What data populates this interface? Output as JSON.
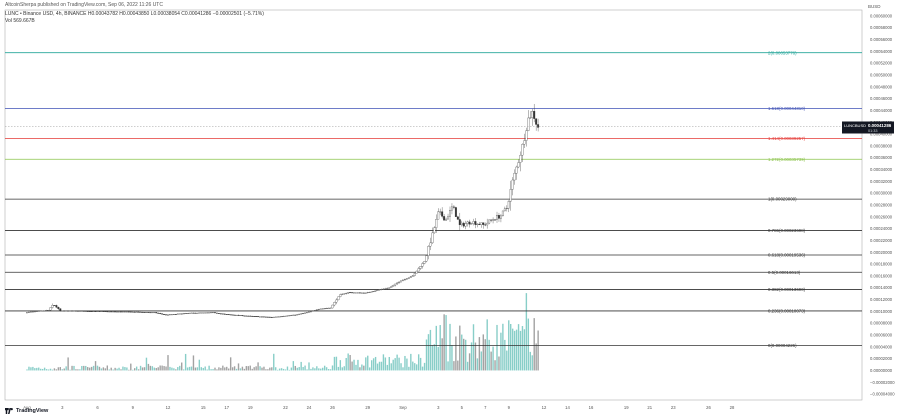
{
  "header": {
    "publisher": "AltcoinSherpa published on TradingView.com, Sep 06, 2022 11:26 UTC",
    "legend": "LUNC • Binance USD, 4h, BINANCE   H0.00043782  H0.00043850  L0.00038054  C0.00041286  −0.00002501 (−5.71%)",
    "volume": "Vol   569.667B",
    "currency": "BUSD",
    "watermark": "TradingView"
  },
  "colors": {
    "up": "#26a69a",
    "down": "#555555",
    "fib_0": "#333333",
    "fib_1618": "#3f51b5",
    "fib_1414": "#e53935",
    "fib_1272": "#8bc34a",
    "fib_2": "#26a69a",
    "price_tag_bg": "#131722"
  },
  "chart_data": {
    "type": "candlestick",
    "title": "",
    "ylim": [
      -5e-05,
      0.00061
    ],
    "y_ticks": [
      "0.00060000",
      "0.00058000",
      "0.00056000",
      "0.00054000",
      "0.00052000",
      "0.00050000",
      "0.00048000",
      "0.00046000",
      "0.00044000",
      "0.00042000",
      "0.00040000",
      "0.00038000",
      "0.00036000",
      "0.00034000",
      "0.00032000",
      "0.00030000",
      "0.00028000",
      "0.00026000",
      "0.00024000",
      "0.00022000",
      "0.00020000",
      "0.00018000",
      "0.00016000",
      "0.00014000",
      "0.00012000",
      "0.00010000",
      "0.00008000",
      "0.00006000",
      "0.00004000",
      "0.00002000",
      "0.00000000",
      "−0.00002000",
      "−0.00004000"
    ],
    "y_tick_values": [
      0.0006,
      0.00058,
      0.00056,
      0.00054,
      0.00052,
      0.0005,
      0.00048,
      0.00046,
      0.00044,
      0.00042,
      0.0004,
      0.00038,
      0.00036,
      0.00034,
      0.00032,
      0.0003,
      0.00028,
      0.00026,
      0.00024,
      0.00022,
      0.0002,
      0.00018,
      0.00016,
      0.00014,
      0.00012,
      0.0001,
      8e-05,
      6e-05,
      4e-05,
      2e-05,
      0,
      -2e-05,
      -4e-05
    ],
    "x_ticks": [
      "Aug",
      "3",
      "6",
      "9",
      "12",
      "15",
      "17",
      "19",
      "22",
      "24",
      "26",
      "29",
      "Sep",
      "3",
      "5",
      "7",
      "9",
      "12",
      "14",
      "16",
      "19",
      "21",
      "23",
      "26",
      "28"
    ],
    "x_tick_days": [
      0,
      3,
      6,
      9,
      12,
      15,
      17,
      19,
      22,
      24,
      26,
      29,
      32,
      35,
      37,
      39,
      41,
      44,
      46,
      48,
      51,
      53,
      55,
      58,
      60
    ],
    "last_price": {
      "label": "LUNCBUSD",
      "value": "0.00041286",
      "countdown": "01:33",
      "y": 0.00041286
    },
    "fib_levels": [
      {
        "label": "2(0.00053776)",
        "value": 0.00053776,
        "color_key": "fib_2"
      },
      {
        "label": "1.618(0.00044310)",
        "value": 0.0004431,
        "color_key": "fib_1618"
      },
      {
        "label": "1.414(0.00039257)",
        "value": 0.00039257,
        "color_key": "fib_1414"
      },
      {
        "label": "1.272(0.00035739)",
        "value": 0.00035739,
        "color_key": "fib_1272"
      },
      {
        "label": "1(0.00029000)",
        "value": 0.00029,
        "color_key": "fib_0"
      },
      {
        "label": "0.786(0.00023698)",
        "value": 0.00023698,
        "color_key": "fib_0"
      },
      {
        "label": "0.618(0.00019536)",
        "value": 0.00019536,
        "color_key": "fib_0"
      },
      {
        "label": "0.5(0.00016613)",
        "value": 0.00016613,
        "color_key": "fib_0"
      },
      {
        "label": "0.382(0.00013690)",
        "value": 0.0001369,
        "color_key": "fib_0"
      },
      {
        "label": "0.236(0.00010073)",
        "value": 0.00010073,
        "color_key": "fib_0"
      },
      {
        "label": "0(0.00004226)",
        "value": 4.226e-05,
        "color_key": "fib_0"
      }
    ],
    "price_path": [
      [
        0,
        9.8e-05
      ],
      [
        2,
        0.000102
      ],
      [
        2.4,
        0.000112
      ],
      [
        3,
        0.000101
      ],
      [
        6,
        0.0001
      ],
      [
        9,
        9.9e-05
      ],
      [
        11,
        9.8e-05
      ],
      [
        12,
        9.4e-05
      ],
      [
        14,
        9.7e-05
      ],
      [
        16,
        9.8e-05
      ],
      [
        17,
        9.5e-05
      ],
      [
        19,
        9.2e-05
      ],
      [
        21,
        9e-05
      ],
      [
        23,
        9.4e-05
      ],
      [
        24,
        9.8e-05
      ],
      [
        25,
        0.000104
      ],
      [
        26,
        0.000106
      ],
      [
        26.8,
        0.000128
      ],
      [
        27.5,
        0.000132
      ],
      [
        29,
        0.000131
      ],
      [
        30,
        0.000136
      ],
      [
        31,
        0.00014
      ],
      [
        32,
        0.000152
      ],
      [
        33,
        0.00016
      ],
      [
        34,
        0.000185
      ],
      [
        34.6,
        0.000225
      ],
      [
        35.2,
        0.000268
      ],
      [
        35.8,
        0.000255
      ],
      [
        36.4,
        0.000278
      ],
      [
        37,
        0.000245
      ],
      [
        38,
        0.000252
      ],
      [
        39,
        0.000246
      ],
      [
        40,
        0.000258
      ],
      [
        40.5,
        0.000262
      ],
      [
        41,
        0.000275
      ],
      [
        41.5,
        0.00032
      ],
      [
        42,
        0.000355
      ],
      [
        42.4,
        0.000385
      ],
      [
        42.8,
        0.000425
      ],
      [
        43.2,
        0.000438
      ],
      [
        43.6,
        0.00041286
      ]
    ],
    "volume_scale_max": 0.0001
  }
}
